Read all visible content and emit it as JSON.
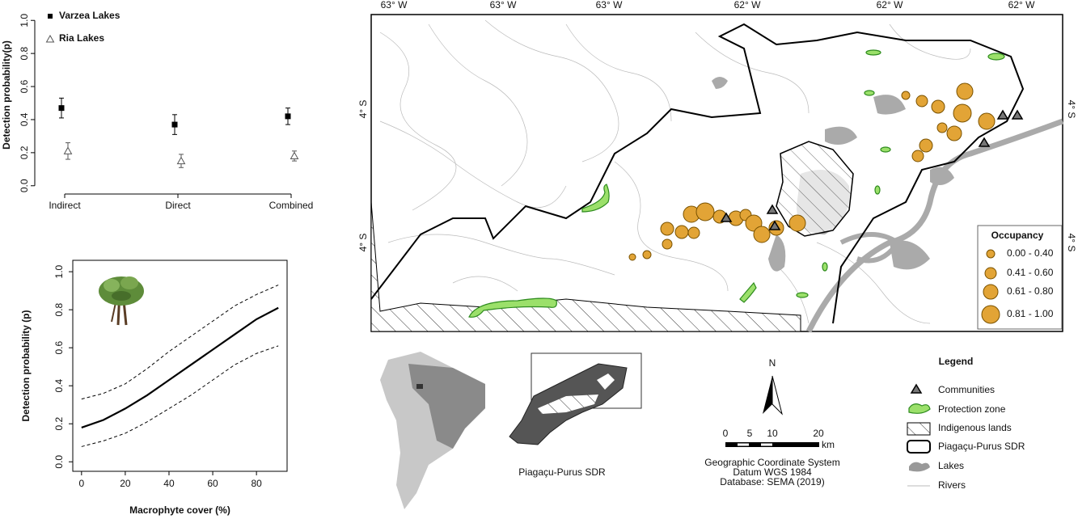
{
  "chart_data": [
    {
      "type": "errorbar",
      "ylabel": "Detection probability(p)",
      "categories": [
        "Indirect",
        "Direct",
        "Combined"
      ],
      "series": [
        {
          "name": "Varzea Lakes",
          "color": "#000000",
          "marker": "square",
          "values": [
            0.47,
            0.37,
            0.42
          ],
          "errors": [
            0.06,
            0.06,
            0.05
          ]
        },
        {
          "name": "Ria Lakes",
          "color": "#555555",
          "marker": "triangle",
          "values": [
            0.21,
            0.15,
            0.18
          ],
          "errors": [
            0.05,
            0.04,
            0.03
          ]
        }
      ],
      "ylim": [
        -0.05,
        1.05
      ],
      "yticks": [
        {
          "value": 0,
          "label": "0.0"
        },
        {
          "value": 0.2,
          "label": "0.2"
        },
        {
          "value": 0.4,
          "label": "0.4"
        },
        {
          "value": 0.6,
          "label": "0.6"
        },
        {
          "value": 0.8,
          "label": "0.8"
        },
        {
          "value": 1,
          "label": "1.0"
        }
      ]
    },
    {
      "type": "line",
      "xlabel": "Macrophyte cover (%)",
      "ylabel": "Detection probability (p)",
      "x": [
        0,
        10,
        20,
        30,
        40,
        50,
        60,
        70,
        80,
        90
      ],
      "values": [
        0.18,
        0.22,
        0.28,
        0.35,
        0.43,
        0.51,
        0.59,
        0.67,
        0.75,
        0.81
      ],
      "lower": [
        0.08,
        0.11,
        0.15,
        0.21,
        0.28,
        0.35,
        0.43,
        0.51,
        0.57,
        0.61
      ],
      "upper": [
        0.33,
        0.36,
        0.41,
        0.49,
        0.58,
        0.66,
        0.74,
        0.82,
        0.88,
        0.93
      ],
      "color": "#000000",
      "xlim": [
        -4,
        94
      ],
      "ylim": [
        -0.05,
        1.06
      ],
      "xticks": [
        0,
        20,
        40,
        60,
        80
      ],
      "yticks": [
        {
          "value": 0,
          "label": "0.0"
        },
        {
          "value": 0.2,
          "label": "0.2"
        },
        {
          "value": 0.4,
          "label": "0.4"
        },
        {
          "value": 0.6,
          "label": "0.6"
        },
        {
          "value": 0.8,
          "label": "0.8"
        },
        {
          "value": 1,
          "label": "1.0"
        }
      ]
    }
  ],
  "map": {
    "top_labels": [
      "63° W",
      "63° W",
      "63° W",
      "62° W",
      "62° W",
      "62° W"
    ],
    "left_labels": [
      "4° S",
      "4° S"
    ],
    "right_labels": [
      "4° S",
      "4° S"
    ],
    "occupancy_legend": {
      "title": "Occupancy",
      "items": [
        "0.00 - 0.40",
        "0.41 - 0.60",
        "0.61 - 0.80",
        "0.81 - 1.00"
      ]
    },
    "inset_label": "Piagaçu-Purus SDR",
    "north": "N",
    "scale": {
      "ticks": [
        "0",
        "5",
        "10",
        "20"
      ],
      "unit": "km"
    },
    "credits": [
      "Geographic Coordinate System",
      "Datum WGS 1984",
      "Database: SEMA (2019)"
    ],
    "legend": {
      "title": "Legend",
      "items": [
        "Communities",
        "Protection zone",
        "Indigenous lands",
        "Piagaçu-Purus SDR",
        "Lakes",
        "Rivers"
      ]
    }
  }
}
